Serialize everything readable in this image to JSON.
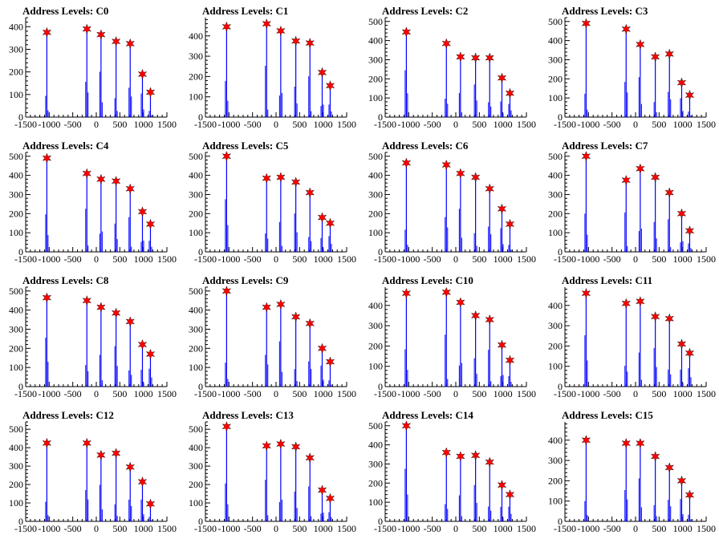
{
  "x_ticks": [
    -1500,
    -1000,
    -500,
    0,
    500,
    1000,
    1500
  ],
  "colors": {
    "spike": "#0000ff",
    "marker": "#ff0000",
    "axis": "#000000"
  },
  "chart_data": [
    {
      "type": "bar",
      "title": "Address Levels: C0",
      "ylim": [
        0,
        440
      ],
      "yticks": [
        0,
        100,
        200,
        300,
        400
      ],
      "peaks": [
        {
          "x": -1050,
          "y": 375
        },
        {
          "x": -200,
          "y": 390
        },
        {
          "x": 100,
          "y": 365
        },
        {
          "x": 420,
          "y": 335
        },
        {
          "x": 720,
          "y": 325
        },
        {
          "x": 980,
          "y": 190
        },
        {
          "x": 1150,
          "y": 110
        }
      ]
    },
    {
      "type": "bar",
      "title": "Address Levels: C1",
      "ylim": [
        0,
        490
      ],
      "yticks": [
        0,
        100,
        200,
        300,
        400
      ],
      "peaks": [
        {
          "x": -1050,
          "y": 445
        },
        {
          "x": -200,
          "y": 460
        },
        {
          "x": 100,
          "y": 425
        },
        {
          "x": 420,
          "y": 375
        },
        {
          "x": 720,
          "y": 365
        },
        {
          "x": 980,
          "y": 220
        },
        {
          "x": 1150,
          "y": 155
        }
      ]
    },
    {
      "type": "bar",
      "title": "Address Levels: C2",
      "ylim": [
        0,
        520
      ],
      "yticks": [
        0,
        100,
        200,
        300,
        400,
        500
      ],
      "peaks": [
        {
          "x": -1050,
          "y": 445
        },
        {
          "x": -200,
          "y": 385
        },
        {
          "x": 100,
          "y": 315
        },
        {
          "x": 420,
          "y": 310
        },
        {
          "x": 720,
          "y": 310
        },
        {
          "x": 980,
          "y": 205
        },
        {
          "x": 1150,
          "y": 125
        }
      ]
    },
    {
      "type": "bar",
      "title": "Address Levels: C3",
      "ylim": [
        0,
        520
      ],
      "yticks": [
        0,
        100,
        200,
        300,
        400,
        500
      ],
      "peaks": [
        {
          "x": -1050,
          "y": 490
        },
        {
          "x": -200,
          "y": 460
        },
        {
          "x": 100,
          "y": 380
        },
        {
          "x": 420,
          "y": 315
        },
        {
          "x": 720,
          "y": 330
        },
        {
          "x": 980,
          "y": 180
        },
        {
          "x": 1150,
          "y": 115
        }
      ]
    },
    {
      "type": "bar",
      "title": "Address Levels: C4",
      "ylim": [
        0,
        520
      ],
      "yticks": [
        0,
        100,
        200,
        300,
        400,
        500
      ],
      "peaks": [
        {
          "x": -1050,
          "y": 490
        },
        {
          "x": -200,
          "y": 410
        },
        {
          "x": 100,
          "y": 380
        },
        {
          "x": 420,
          "y": 370
        },
        {
          "x": 720,
          "y": 330
        },
        {
          "x": 980,
          "y": 210
        },
        {
          "x": 1150,
          "y": 145
        }
      ]
    },
    {
      "type": "bar",
      "title": "Address Levels: C5",
      "ylim": [
        0,
        520
      ],
      "yticks": [
        0,
        100,
        200,
        300,
        400,
        500
      ],
      "peaks": [
        {
          "x": -1050,
          "y": 500
        },
        {
          "x": -200,
          "y": 385
        },
        {
          "x": 100,
          "y": 390
        },
        {
          "x": 420,
          "y": 365
        },
        {
          "x": 720,
          "y": 310
        },
        {
          "x": 980,
          "y": 180
        },
        {
          "x": 1150,
          "y": 150
        }
      ]
    },
    {
      "type": "bar",
      "title": "Address Levels: C6",
      "ylim": [
        0,
        520
      ],
      "yticks": [
        0,
        100,
        200,
        300,
        400,
        500
      ],
      "peaks": [
        {
          "x": -1050,
          "y": 465
        },
        {
          "x": -200,
          "y": 455
        },
        {
          "x": 100,
          "y": 410
        },
        {
          "x": 420,
          "y": 390
        },
        {
          "x": 720,
          "y": 330
        },
        {
          "x": 980,
          "y": 225
        },
        {
          "x": 1150,
          "y": 145
        }
      ]
    },
    {
      "type": "bar",
      "title": "Address Levels: C7",
      "ylim": [
        0,
        520
      ],
      "yticks": [
        0,
        100,
        200,
        300,
        400,
        500
      ],
      "peaks": [
        {
          "x": -1050,
          "y": 500
        },
        {
          "x": -200,
          "y": 375
        },
        {
          "x": 100,
          "y": 435
        },
        {
          "x": 420,
          "y": 390
        },
        {
          "x": 720,
          "y": 310
        },
        {
          "x": 980,
          "y": 200
        },
        {
          "x": 1150,
          "y": 110
        }
      ]
    },
    {
      "type": "bar",
      "title": "Address Levels: C8",
      "ylim": [
        0,
        520
      ],
      "yticks": [
        0,
        100,
        200,
        300,
        400,
        500
      ],
      "peaks": [
        {
          "x": -1050,
          "y": 465
        },
        {
          "x": -200,
          "y": 450
        },
        {
          "x": 100,
          "y": 415
        },
        {
          "x": 420,
          "y": 385
        },
        {
          "x": 720,
          "y": 340
        },
        {
          "x": 980,
          "y": 220
        },
        {
          "x": 1150,
          "y": 170
        }
      ]
    },
    {
      "type": "bar",
      "title": "Address Levels: C9",
      "ylim": [
        0,
        520
      ],
      "yticks": [
        0,
        100,
        200,
        300,
        400,
        500
      ],
      "peaks": [
        {
          "x": -1050,
          "y": 500
        },
        {
          "x": -200,
          "y": 415
        },
        {
          "x": 100,
          "y": 430
        },
        {
          "x": 420,
          "y": 365
        },
        {
          "x": 720,
          "y": 330
        },
        {
          "x": 980,
          "y": 200
        },
        {
          "x": 1150,
          "y": 130
        }
      ]
    },
    {
      "type": "bar",
      "title": "Address Levels: C10",
      "ylim": [
        0,
        490
      ],
      "yticks": [
        0,
        100,
        200,
        300,
        400
      ],
      "peaks": [
        {
          "x": -1050,
          "y": 460
        },
        {
          "x": -200,
          "y": 465
        },
        {
          "x": 100,
          "y": 415
        },
        {
          "x": 420,
          "y": 350
        },
        {
          "x": 720,
          "y": 330
        },
        {
          "x": 980,
          "y": 205
        },
        {
          "x": 1150,
          "y": 130
        }
      ]
    },
    {
      "type": "bar",
      "title": "Address Levels: C11",
      "ylim": [
        0,
        490
      ],
      "yticks": [
        0,
        100,
        200,
        300,
        400
      ],
      "peaks": [
        {
          "x": -1050,
          "y": 460
        },
        {
          "x": -200,
          "y": 410
        },
        {
          "x": 100,
          "y": 420
        },
        {
          "x": 420,
          "y": 345
        },
        {
          "x": 720,
          "y": 335
        },
        {
          "x": 980,
          "y": 210
        },
        {
          "x": 1150,
          "y": 165
        }
      ]
    },
    {
      "type": "bar",
      "title": "Address Levels: C12",
      "ylim": [
        0,
        540
      ],
      "yticks": [
        0,
        100,
        200,
        300,
        400,
        500
      ],
      "peaks": [
        {
          "x": -1050,
          "y": 425
        },
        {
          "x": -200,
          "y": 425
        },
        {
          "x": 100,
          "y": 360
        },
        {
          "x": 420,
          "y": 370
        },
        {
          "x": 720,
          "y": 295
        },
        {
          "x": 980,
          "y": 215
        },
        {
          "x": 1150,
          "y": 95
        }
      ]
    },
    {
      "type": "bar",
      "title": "Address Levels: C13",
      "ylim": [
        0,
        540
      ],
      "yticks": [
        0,
        100,
        200,
        300,
        400,
        500
      ],
      "peaks": [
        {
          "x": -1050,
          "y": 515
        },
        {
          "x": -200,
          "y": 410
        },
        {
          "x": 100,
          "y": 420
        },
        {
          "x": 420,
          "y": 405
        },
        {
          "x": 720,
          "y": 345
        },
        {
          "x": 980,
          "y": 170
        },
        {
          "x": 1150,
          "y": 125
        }
      ]
    },
    {
      "type": "bar",
      "title": "Address Levels: C14",
      "ylim": [
        0,
        520
      ],
      "yticks": [
        0,
        100,
        200,
        300,
        400,
        500
      ],
      "peaks": [
        {
          "x": -1050,
          "y": 500
        },
        {
          "x": -200,
          "y": 360
        },
        {
          "x": 100,
          "y": 340
        },
        {
          "x": 420,
          "y": 345
        },
        {
          "x": 720,
          "y": 310
        },
        {
          "x": 980,
          "y": 190
        },
        {
          "x": 1150,
          "y": 140
        }
      ]
    },
    {
      "type": "bar",
      "title": "Address Levels: C15",
      "ylim": [
        0,
        490
      ],
      "yticks": [
        0,
        100,
        200,
        300,
        400
      ],
      "peaks": [
        {
          "x": -1050,
          "y": 400
        },
        {
          "x": -200,
          "y": 385
        },
        {
          "x": 100,
          "y": 385
        },
        {
          "x": 420,
          "y": 320
        },
        {
          "x": 720,
          "y": 265
        },
        {
          "x": 980,
          "y": 200
        },
        {
          "x": 1150,
          "y": 130
        }
      ]
    }
  ]
}
